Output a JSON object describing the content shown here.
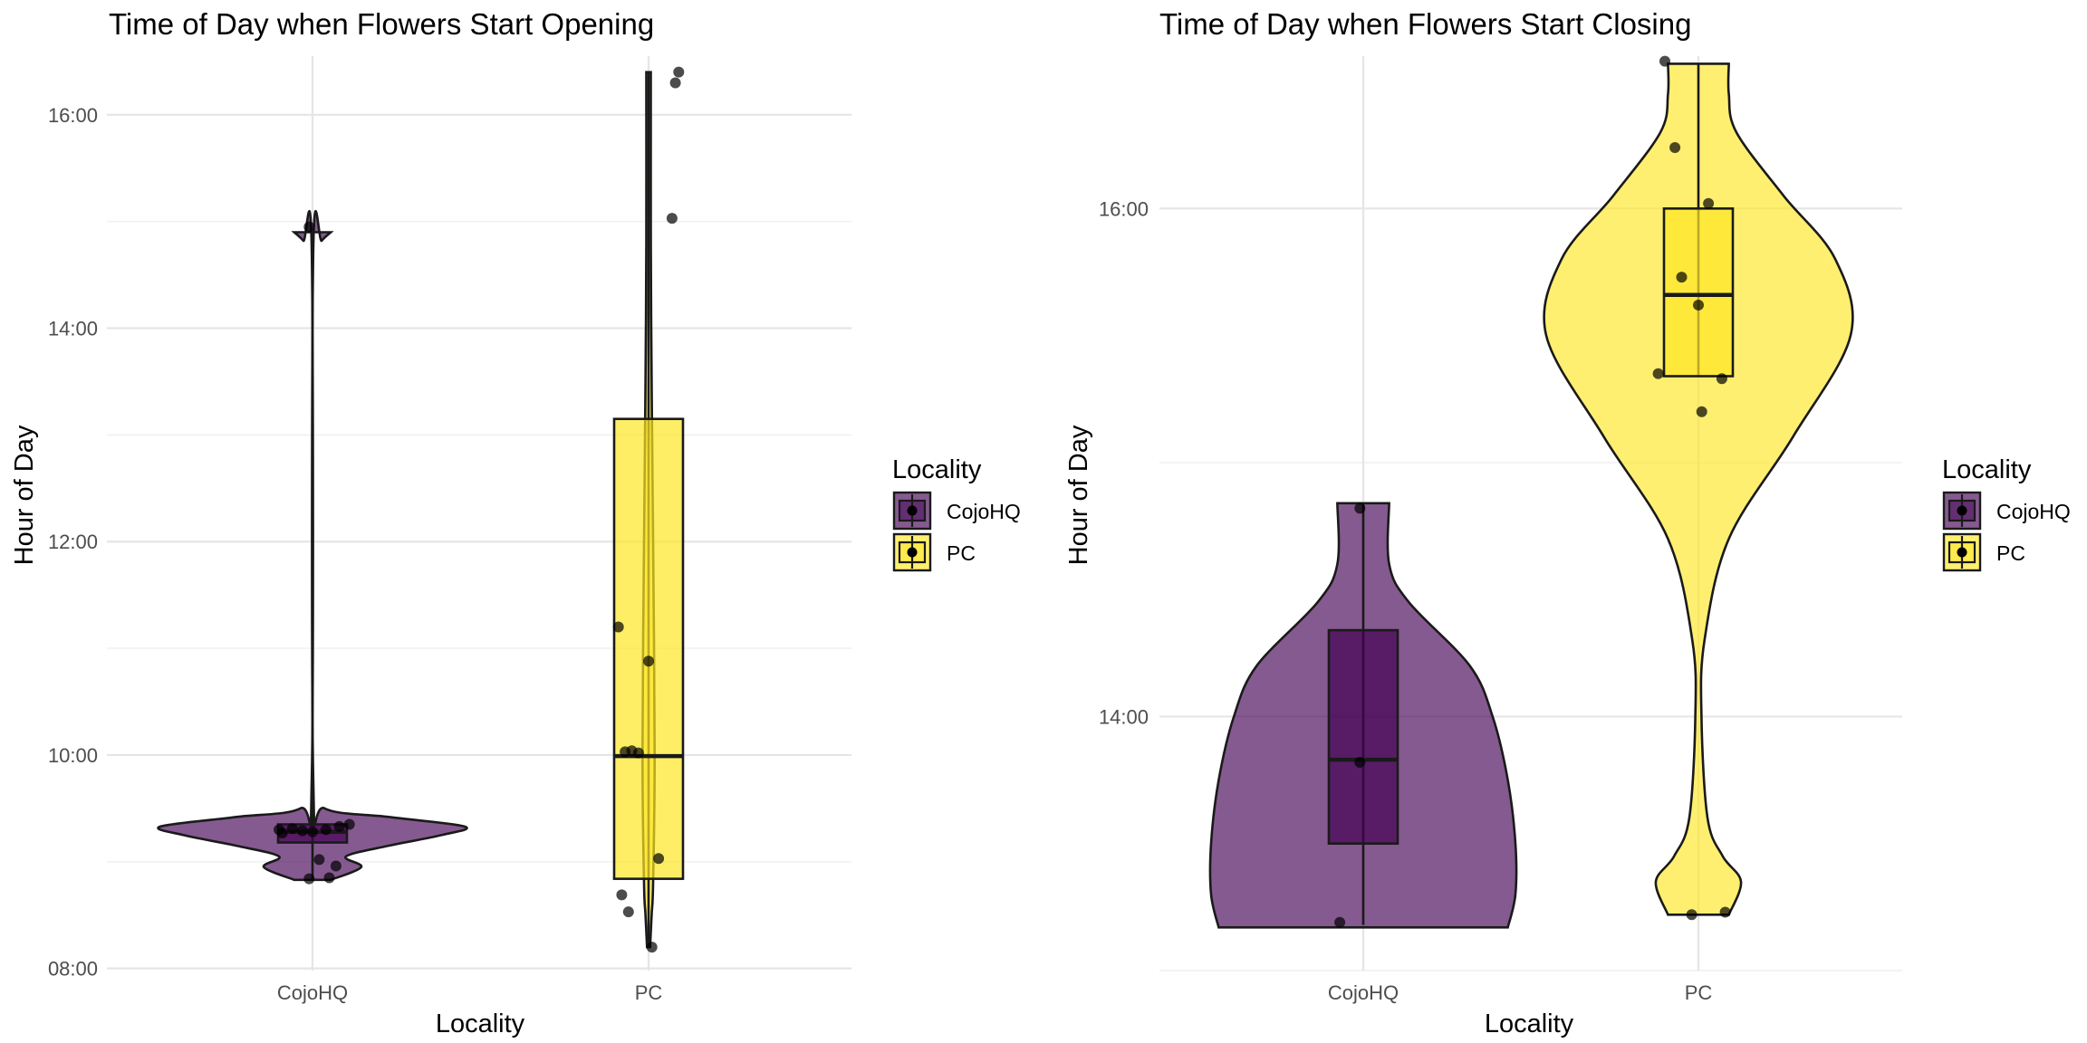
{
  "chart_data": [
    {
      "type": "violin",
      "title": "Time of Day when Flowers Start Opening",
      "xlabel": "Locality",
      "ylabel": "Hour of Day",
      "categories": [
        "CojoHQ",
        "PC"
      ],
      "y_ticks": [
        "08:00",
        "10:00",
        "12:00",
        "14:00",
        "16:00"
      ],
      "y_tick_values": [
        8,
        10,
        12,
        14,
        16
      ],
      "ylim": [
        7.98,
        16.55
      ],
      "legend": {
        "title": "Locality",
        "entries": [
          "CojoHQ",
          "PC"
        ],
        "position": "right"
      },
      "groups": [
        {
          "name": "CojoHQ",
          "color": "#440154",
          "box": {
            "q1": 9.18,
            "median": 9.28,
            "q3": 9.35,
            "whisker_low": 8.83,
            "whisker_high": 14.9
          },
          "violin_profile": [
            [
              8.83,
              0.12
            ],
            [
              8.95,
              0.32
            ],
            [
              9.05,
              0.22
            ],
            [
              9.15,
              0.5
            ],
            [
              9.25,
              0.85
            ],
            [
              9.33,
              1.0
            ],
            [
              9.42,
              0.5
            ],
            [
              9.5,
              0.08
            ],
            [
              9.8,
              0.005
            ],
            [
              14.7,
              0.005
            ],
            [
              14.82,
              0.06
            ],
            [
              14.9,
              0.12
            ]
          ],
          "points": [
            [
              -0.09,
              9.27
            ],
            [
              -0.06,
              9.31
            ],
            [
              -0.03,
              9.29
            ],
            [
              0.0,
              9.28
            ],
            [
              0.04,
              9.3
            ],
            [
              0.08,
              9.33
            ],
            [
              0.11,
              9.35
            ],
            [
              -0.1,
              9.3
            ],
            [
              0.02,
              9.02
            ],
            [
              0.07,
              8.96
            ],
            [
              -0.01,
              8.84
            ],
            [
              0.05,
              8.85
            ],
            [
              -0.01,
              14.95
            ]
          ]
        },
        {
          "name": "PC",
          "color": "#fde725",
          "box": {
            "q1": 8.84,
            "median": 9.99,
            "q3": 13.15,
            "whisker_low": 8.2,
            "whisker_high": 16.4
          },
          "violin_profile": [
            [
              8.2,
              0.01
            ],
            [
              8.5,
              0.02
            ],
            [
              8.8,
              0.03
            ],
            [
              10.0,
              0.04
            ],
            [
              12.0,
              0.03
            ],
            [
              13.5,
              0.02
            ],
            [
              14.8,
              0.015
            ],
            [
              16.4,
              0.015
            ]
          ],
          "points": [
            [
              -0.09,
              11.2
            ],
            [
              0.0,
              10.88
            ],
            [
              -0.07,
              10.03
            ],
            [
              -0.05,
              10.04
            ],
            [
              -0.03,
              10.02
            ],
            [
              0.03,
              9.03
            ],
            [
              -0.08,
              8.69
            ],
            [
              -0.06,
              8.53
            ],
            [
              0.01,
              8.2
            ],
            [
              0.07,
              15.03
            ],
            [
              0.08,
              16.3
            ],
            [
              0.09,
              16.4
            ]
          ]
        }
      ]
    },
    {
      "type": "violin",
      "title": "Time of Day when Flowers Start Closing",
      "xlabel": "Locality",
      "ylabel": "Hour of Day",
      "categories": [
        "CojoHQ",
        "PC"
      ],
      "y_ticks": [
        "14:00",
        "16:00"
      ],
      "y_tick_values": [
        14,
        16
      ],
      "ylim": [
        13.0,
        16.6
      ],
      "legend": {
        "title": "Locality",
        "entries": [
          "CojoHQ",
          "PC"
        ],
        "position": "right"
      },
      "groups": [
        {
          "name": "CojoHQ",
          "color": "#440154",
          "box": {
            "q1": 13.5,
            "median": 13.83,
            "q3": 14.34,
            "whisker_low": 13.18,
            "whisker_high": 14.84
          },
          "violin_profile": [
            [
              13.17,
              0.95
            ],
            [
              13.3,
              1.0
            ],
            [
              13.5,
              1.0
            ],
            [
              13.75,
              0.95
            ],
            [
              14.0,
              0.85
            ],
            [
              14.2,
              0.7
            ],
            [
              14.45,
              0.3
            ],
            [
              14.6,
              0.17
            ],
            [
              14.84,
              0.17
            ]
          ],
          "points": [
            [
              -0.07,
              13.19
            ],
            [
              -0.01,
              13.82
            ],
            [
              -0.01,
              14.82
            ]
          ]
        },
        {
          "name": "PC",
          "color": "#fde725",
          "box": {
            "q1": 15.34,
            "median": 15.66,
            "q3": 16.0,
            "whisker_low": 15.34,
            "whisker_high": 16.57
          },
          "violin_profile": [
            [
              13.22,
              0.2
            ],
            [
              13.35,
              0.28
            ],
            [
              13.45,
              0.16
            ],
            [
              13.6,
              0.06
            ],
            [
              14.0,
              0.02
            ],
            [
              14.3,
              0.04
            ],
            [
              14.7,
              0.2
            ],
            [
              15.1,
              0.62
            ],
            [
              15.5,
              1.0
            ],
            [
              15.8,
              0.9
            ],
            [
              16.05,
              0.56
            ],
            [
              16.3,
              0.25
            ],
            [
              16.45,
              0.2
            ],
            [
              16.57,
              0.2
            ]
          ],
          "points": [
            [
              -0.1,
              16.58
            ],
            [
              -0.07,
              16.24
            ],
            [
              0.03,
              16.02
            ],
            [
              -0.05,
              15.73
            ],
            [
              -0.12,
              15.35
            ],
            [
              0.0,
              15.62
            ],
            [
              0.07,
              15.33
            ],
            [
              0.01,
              15.2
            ],
            [
              0.08,
              13.23
            ],
            [
              -0.02,
              13.22
            ]
          ]
        }
      ]
    }
  ]
}
